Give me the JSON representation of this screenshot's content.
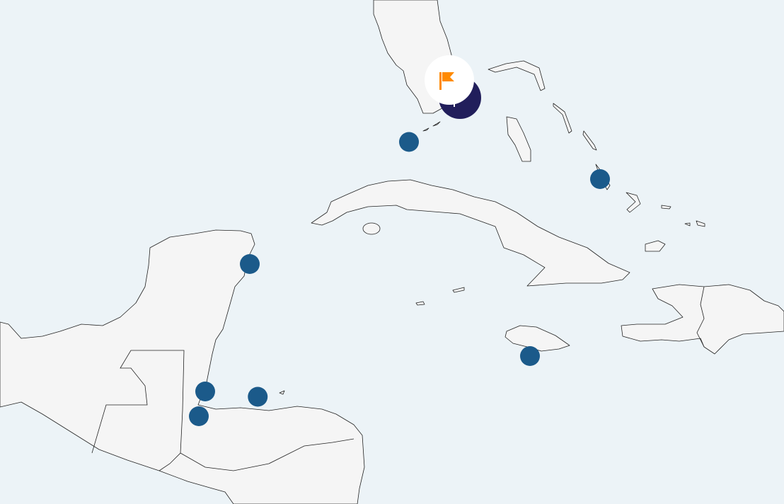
{
  "map": {
    "region": "Caribbean",
    "colors": {
      "water": "#ecf3f7",
      "land": "#f5f5f5",
      "marker": "#1b5a8a",
      "selected_marker": "#211e5b",
      "flag": "#ff8a00"
    },
    "markers": [
      {
        "lat": 24.55,
        "lon": -81.8,
        "selected": false
      },
      {
        "lat": 23.5,
        "lon": -75.8,
        "selected": false
      },
      {
        "lat": 21.1,
        "lon": -86.8,
        "selected": false
      },
      {
        "lat": 18.5,
        "lon": -78.0,
        "selected": false
      },
      {
        "lat": 17.5,
        "lon": -88.2,
        "selected": false
      },
      {
        "lat": 17.35,
        "lon": -86.55,
        "selected": false
      },
      {
        "lat": 16.8,
        "lon": -88.4,
        "selected": false
      }
    ],
    "selected_marker": {
      "lat": 25.8,
      "lon": -80.2,
      "icon": "flag-icon"
    }
  }
}
